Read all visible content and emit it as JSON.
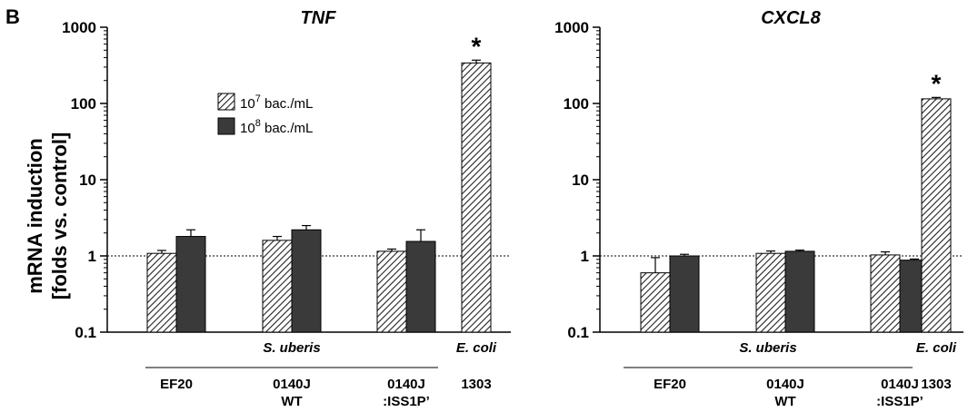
{
  "figure": {
    "panel_letter": "B",
    "ylabel_line1": "mRNA induction",
    "ylabel_line2": "[folds vs. control]"
  },
  "legend": {
    "placement": "top-center of left panel",
    "items": [
      {
        "base": "10",
        "exp": "7",
        "unit": " bac./mL",
        "fill": "hatch"
      },
      {
        "base": "10",
        "exp": "8",
        "unit": " bac./mL",
        "fill": "#3a3a3a"
      }
    ]
  },
  "groups": {
    "species": [
      "S. uberis",
      "E. coli"
    ],
    "strains": [
      {
        "line1": "EF20",
        "line2": ""
      },
      {
        "line1": "0140J",
        "line2": "WT"
      },
      {
        "line1": "0140J",
        "line2": ":ISS1P’"
      },
      {
        "line1": "1303",
        "line2": ""
      }
    ]
  },
  "chart_data": [
    {
      "type": "bar",
      "title": "TNF",
      "yscale": "log",
      "ylim": [
        0.1,
        1000
      ],
      "yticks": [
        "0.1",
        "1",
        "10",
        "100",
        "1000"
      ],
      "reference_line": 1,
      "categories": [
        "EF20",
        "0140J WT",
        "0140J :ISS1P’",
        "1303"
      ],
      "series": [
        {
          "name": "10^7 bac./mL",
          "values": [
            1.08,
            1.6,
            1.15,
            340
          ],
          "errors": [
            0.1,
            0.2,
            0.08,
            30
          ]
        },
        {
          "name": "10^8 bac./mL",
          "values": [
            1.8,
            2.2,
            1.55,
            null
          ],
          "errors": [
            0.4,
            0.3,
            0.65,
            null
          ]
        }
      ],
      "annotations": [
        {
          "category": "1303",
          "text": "*"
        }
      ]
    },
    {
      "type": "bar",
      "title": "CXCL8",
      "yscale": "log",
      "ylim": [
        0.1,
        1000
      ],
      "yticks": [
        "0.1",
        "1",
        "10",
        "100",
        "1000"
      ],
      "reference_line": 1,
      "categories": [
        "EF20",
        "0140J WT",
        "0140J :ISS1P’",
        "1303"
      ],
      "series": [
        {
          "name": "10^7 bac./mL",
          "values": [
            0.6,
            1.08,
            1.03,
            115
          ],
          "errors": [
            0.35,
            0.08,
            0.1,
            5
          ]
        },
        {
          "name": "10^8 bac./mL",
          "values": [
            1.0,
            1.15,
            0.88,
            null
          ],
          "errors": [
            0.05,
            0.04,
            0.03,
            null
          ]
        }
      ],
      "annotations": [
        {
          "category": "1303",
          "text": "*"
        }
      ]
    }
  ],
  "colors": {
    "dark_bar": "#3a3a3a",
    "hatch_stroke": "#222222",
    "axis": "#000000"
  }
}
